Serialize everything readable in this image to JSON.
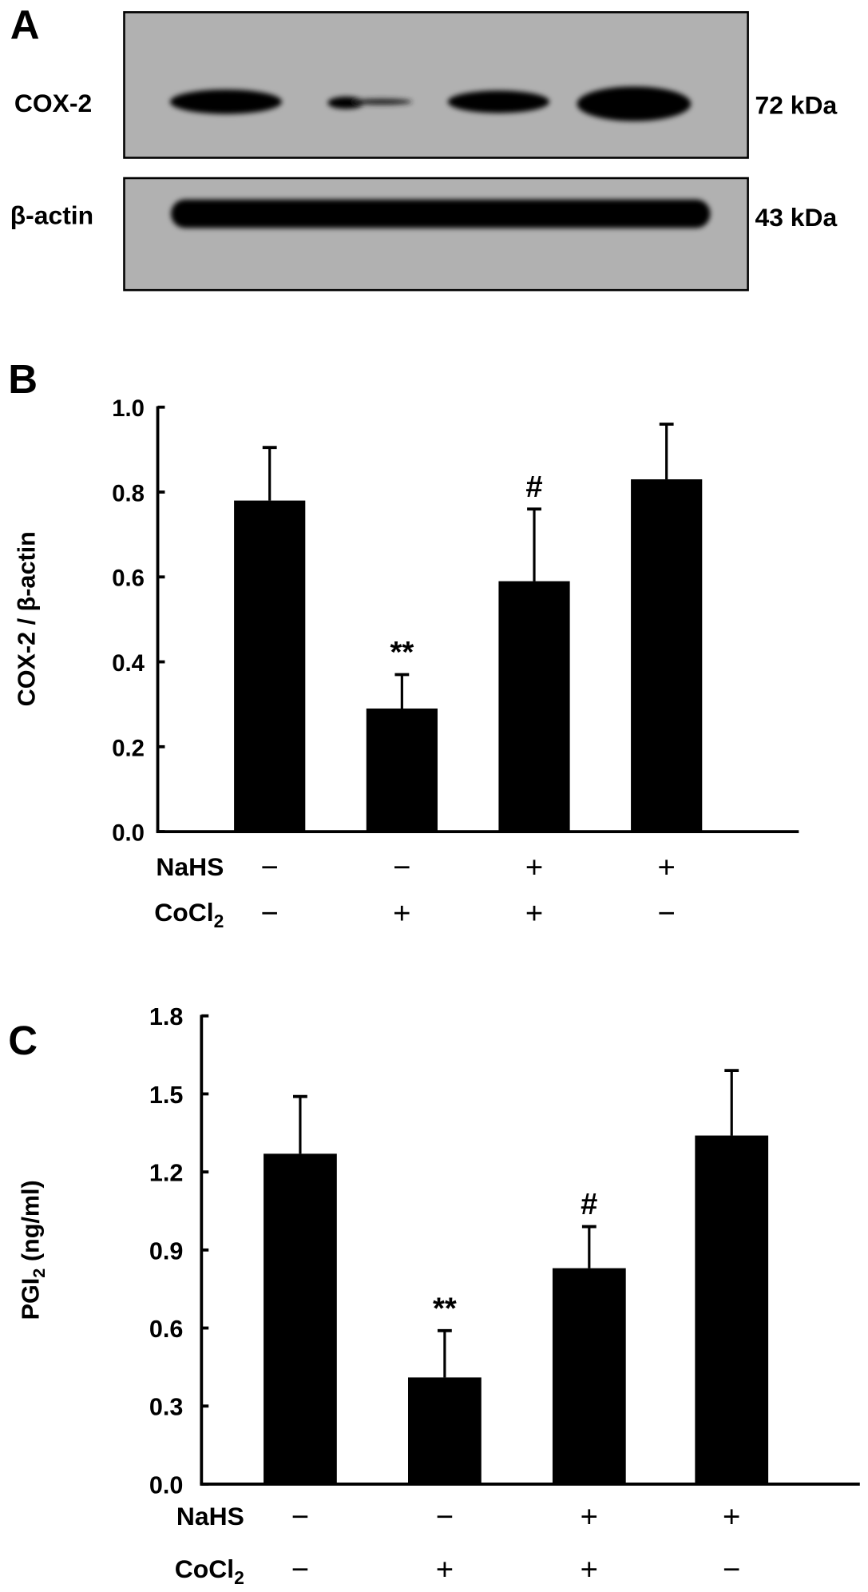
{
  "panel_a": {
    "letter": "A",
    "blots": [
      {
        "label": "COX-2",
        "size": "72 kDa"
      },
      {
        "label": "β-actin",
        "size": "43 kDa"
      }
    ]
  },
  "treatments": {
    "row_labels": [
      "NaHS",
      "CoCl",
      "2"
    ],
    "nahs": [
      "−",
      "−",
      "+",
      "+"
    ],
    "cocl2": [
      "−",
      "+",
      "+",
      "−"
    ]
  },
  "chart_data": [
    {
      "type": "bar",
      "panel": "B",
      "ylabel": "COX-2 / β-actin",
      "ylim": [
        0,
        1.0
      ],
      "yticks": [
        "0.0",
        "0.2",
        "0.4",
        "0.6",
        "0.8",
        "1.0"
      ],
      "categories": [
        "NaHS− CoCl2−",
        "NaHS− CoCl2+",
        "NaHS+ CoCl2+",
        "NaHS+ CoCl2−"
      ],
      "values": [
        0.78,
        0.29,
        0.59,
        0.83
      ],
      "error_upper": [
        0.905,
        0.37,
        0.76,
        0.96
      ],
      "annotations": [
        "",
        "**",
        "#",
        ""
      ]
    },
    {
      "type": "bar",
      "panel": "C",
      "ylabel": "PGI",
      "ylabel_sub": "2",
      "ylabel_unit": " (ng/ml)",
      "ylim": [
        0,
        1.8
      ],
      "yticks": [
        "0.0",
        "0.3",
        "0.6",
        "0.9",
        "1.2",
        "1.5",
        "1.8"
      ],
      "categories": [
        "NaHS− CoCl2−",
        "NaHS− CoCl2+",
        "NaHS+ CoCl2+",
        "NaHS+ CoCl2−"
      ],
      "values": [
        1.27,
        0.41,
        0.83,
        1.34
      ],
      "error_upper": [
        1.49,
        0.59,
        0.99,
        1.59
      ],
      "annotations": [
        "",
        "**",
        "#",
        ""
      ]
    }
  ]
}
